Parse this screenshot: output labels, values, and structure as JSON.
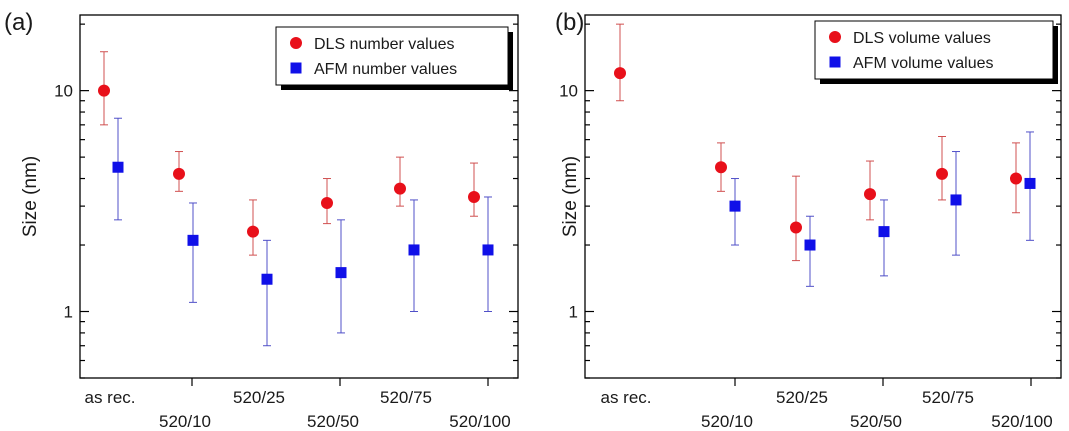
{
  "chart_data": [
    {
      "type": "scatter",
      "panel_label": "(a)",
      "ylabel": "Size (nm)",
      "yscale": "log",
      "ylim": [
        0.5,
        22
      ],
      "yticks": [
        1,
        10
      ],
      "categories": [
        "as rec.",
        "520/10",
        "520/25",
        "520/50",
        "520/75",
        "520/100"
      ],
      "legend_position": "top-right",
      "series": [
        {
          "name": "DLS number values",
          "marker": "circle",
          "color": "#e8101a",
          "error_color": "#d05050",
          "values": [
            10.0,
            4.2,
            2.3,
            3.1,
            3.6,
            3.3
          ],
          "err_low": [
            7.0,
            3.5,
            1.8,
            2.5,
            3.0,
            2.7
          ],
          "err_high": [
            15.0,
            5.3,
            3.2,
            4.0,
            5.0,
            4.7
          ]
        },
        {
          "name": "AFM number values",
          "marker": "square",
          "color": "#1010e8",
          "error_color": "#5050c8",
          "values": [
            4.5,
            2.1,
            1.4,
            1.5,
            1.9,
            1.9
          ],
          "err_low": [
            2.6,
            1.1,
            0.7,
            0.8,
            1.0,
            1.0
          ],
          "err_high": [
            7.5,
            3.1,
            2.1,
            2.6,
            3.2,
            3.3
          ]
        }
      ]
    },
    {
      "type": "scatter",
      "panel_label": "(b)",
      "ylabel": "Size (nm)",
      "yscale": "log",
      "ylim": [
        0.5,
        22
      ],
      "yticks": [
        1,
        10
      ],
      "categories": [
        "as rec.",
        "520/10",
        "520/25",
        "520/50",
        "520/75",
        "520/100"
      ],
      "legend_position": "top-right",
      "series": [
        {
          "name": "DLS volume values",
          "marker": "circle",
          "color": "#e8101a",
          "error_color": "#d05050",
          "values": [
            12.0,
            4.5,
            2.4,
            3.4,
            4.2,
            4.0
          ],
          "err_low": [
            9.0,
            3.5,
            1.7,
            2.6,
            3.2,
            2.8
          ],
          "err_high": [
            20.0,
            5.8,
            4.1,
            4.8,
            6.2,
            5.8
          ]
        },
        {
          "name": "AFM volume values",
          "marker": "square",
          "color": "#1010e8",
          "error_color": "#5050c8",
          "values": [
            3.0,
            2.0,
            2.3,
            3.2,
            3.8
          ],
          "category_index": [
            1,
            2,
            3,
            4,
            5
          ],
          "err_low": [
            2.0,
            1.3,
            1.45,
            1.8,
            2.1
          ],
          "err_high": [
            4.0,
            2.7,
            3.2,
            5.3,
            6.5
          ]
        }
      ]
    }
  ]
}
